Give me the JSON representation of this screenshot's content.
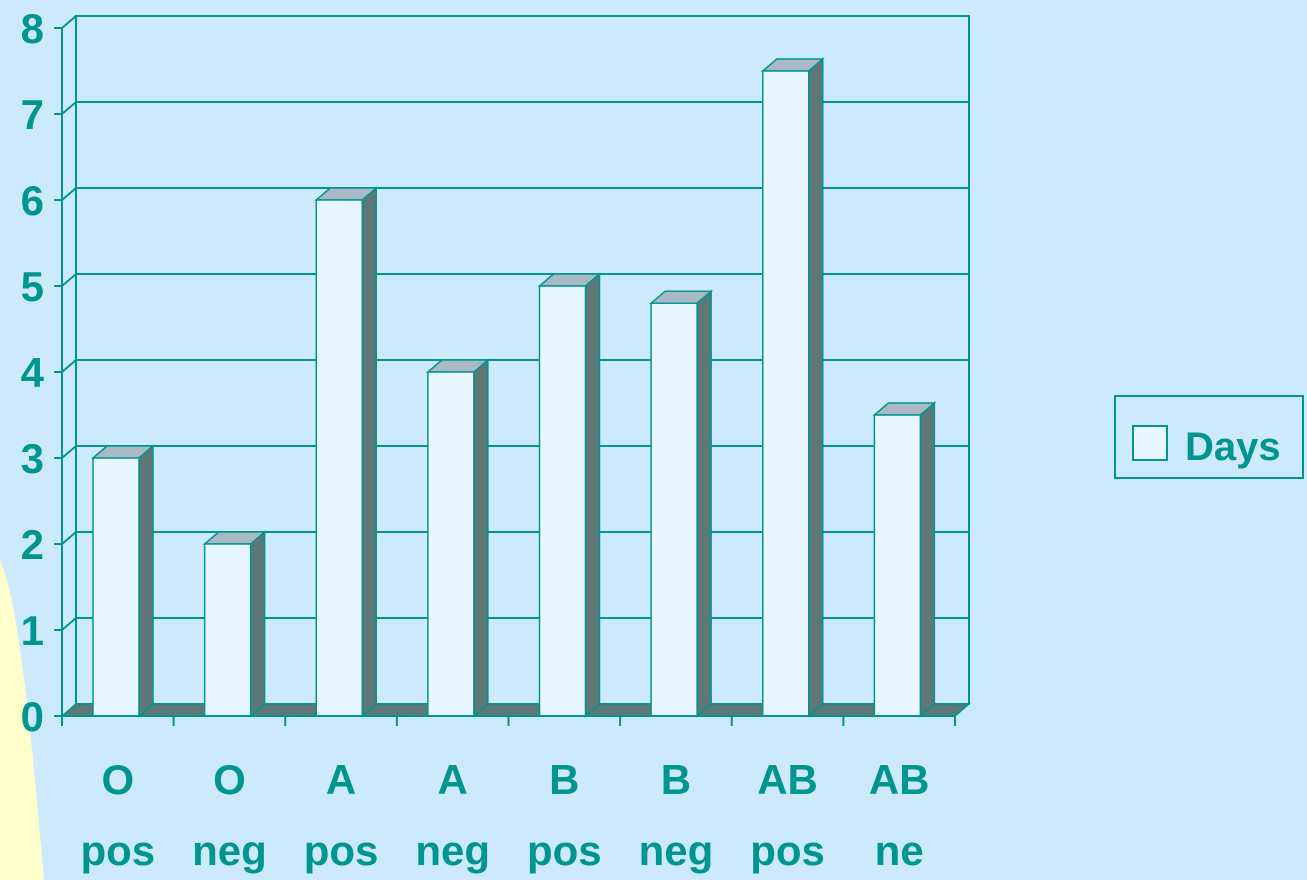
{
  "chart_data": {
    "type": "bar",
    "style": "3d",
    "categories": [
      [
        "O",
        "pos"
      ],
      [
        "O",
        "neg"
      ],
      [
        "A",
        "pos"
      ],
      [
        "A",
        "neg"
      ],
      [
        "B",
        "pos"
      ],
      [
        "B",
        "neg"
      ],
      [
        "AB",
        "pos"
      ],
      [
        "AB",
        "ne"
      ]
    ],
    "series": [
      {
        "name": "Days",
        "values": [
          3,
          2,
          6,
          4,
          5,
          4.8,
          7.5,
          3.5
        ]
      }
    ],
    "yticks": [
      "0",
      "1",
      "2",
      "3",
      "4",
      "5",
      "6",
      "7",
      "8"
    ],
    "ylim": [
      0,
      8
    ],
    "grid": true,
    "legend_position": "right",
    "colors": {
      "background": "#cdeafc",
      "text": "#00958f",
      "axis": "#00958f",
      "bar_front": "#e8f6ff",
      "bar_side": "#5e7878",
      "bar_top": "#a9b9c5",
      "floor": "#5e7878",
      "accent_blob": "#ffffcc"
    }
  }
}
